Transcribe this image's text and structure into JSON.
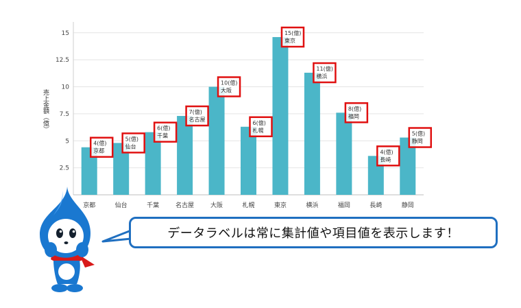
{
  "chart_data": {
    "type": "bar",
    "ylabel": "売上金額（億）",
    "ylim": [
      0,
      16
    ],
    "yticks": [
      2.5,
      5,
      7.5,
      10,
      12.5,
      15
    ],
    "categories": [
      "京都",
      "仙台",
      "千葉",
      "名古屋",
      "大阪",
      "札幌",
      "東京",
      "横浜",
      "福岡",
      "長崎",
      "静岡"
    ],
    "values": [
      4.4,
      4.8,
      5.8,
      7.3,
      10.0,
      6.3,
      14.6,
      11.3,
      7.6,
      3.6,
      5.3
    ],
    "data_labels": [
      {
        "value": "4(億)",
        "category": "京都"
      },
      {
        "value": "5(億)",
        "category": "仙台"
      },
      {
        "value": "6(億)",
        "category": "千葉"
      },
      {
        "value": "7(億)",
        "category": "名古屋"
      },
      {
        "value": "10(億)",
        "category": "大阪"
      },
      {
        "value": "6(億)",
        "category": "札幌"
      },
      {
        "value": "15(億)",
        "category": "東京"
      },
      {
        "value": "11(億)",
        "category": "横浜"
      },
      {
        "value": "8(億)",
        "category": "福岡"
      },
      {
        "value": "4(億)",
        "category": "長崎"
      },
      {
        "value": "5(億)",
        "category": "静岡"
      }
    ],
    "grid": true,
    "bar_color": "#4bb6c8",
    "highlight_color": "#e01010"
  },
  "callout": {
    "text": "データラベルは常に集計値や項目値を表示します！",
    "border_color": "#1f6fc0"
  },
  "mascot": {
    "icon": "water-drop-mascot",
    "body_color": "#1a78d0",
    "scarf_color": "#d81a1a"
  }
}
